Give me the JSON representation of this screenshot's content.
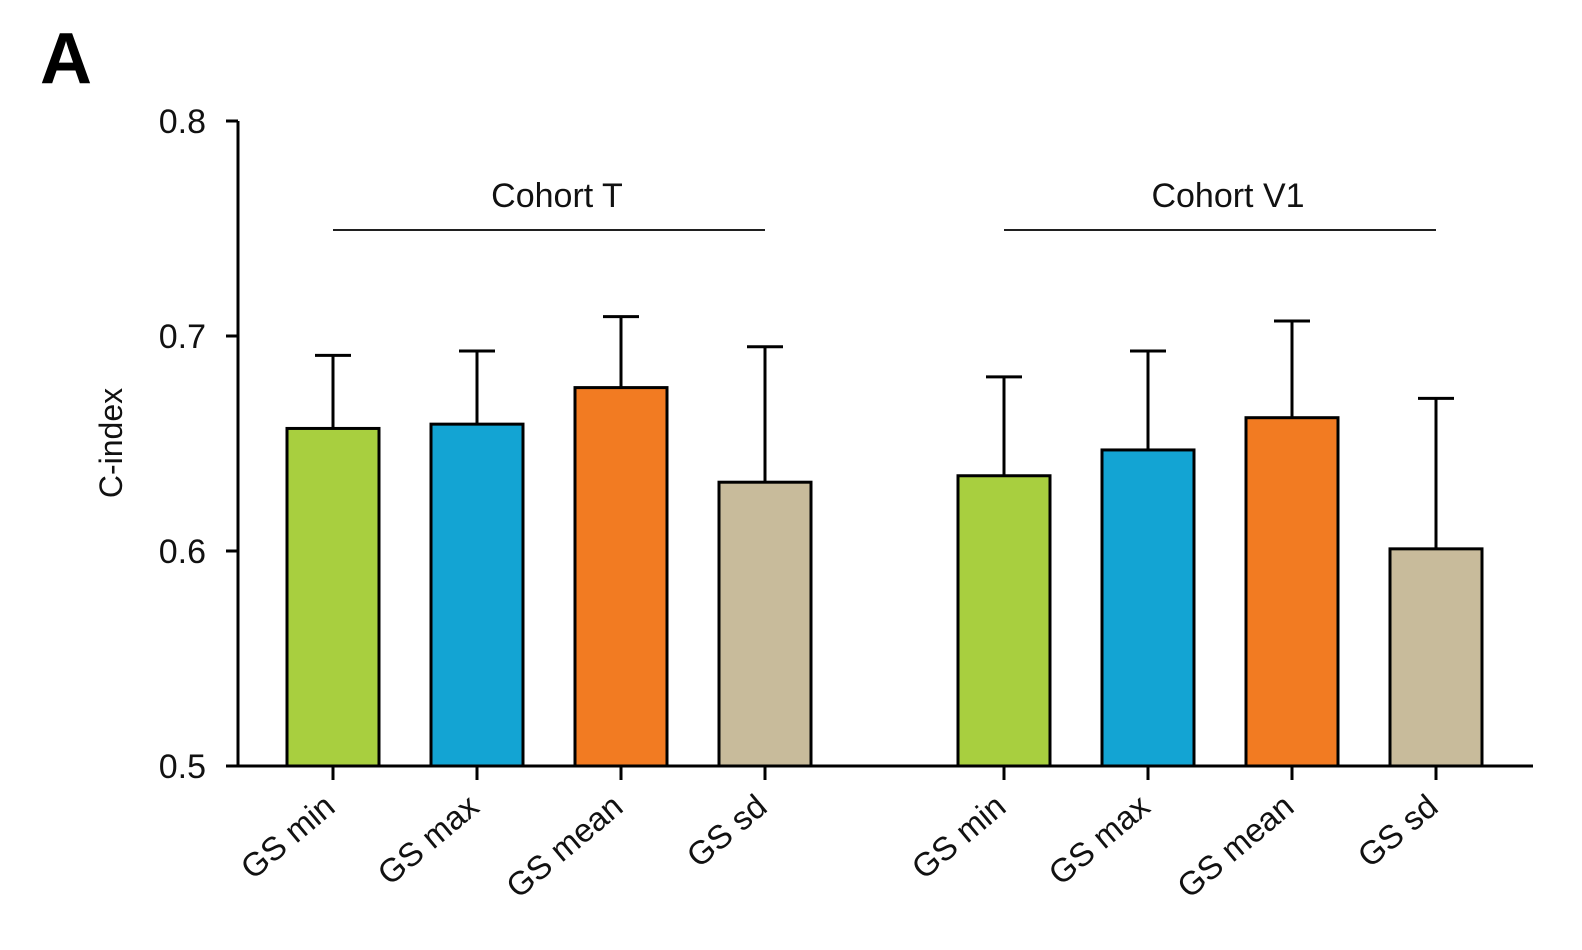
{
  "panel_label": "A",
  "chart_data": {
    "type": "bar",
    "title": "",
    "xlabel": "",
    "ylabel": "C-index",
    "ylim": [
      0.5,
      0.8
    ],
    "yticks": [
      0.5,
      0.6,
      0.7,
      0.8
    ],
    "ytick_labels": [
      "0.5",
      "0.6",
      "0.7",
      "0.8"
    ],
    "grid": false,
    "groups": [
      {
        "name": "Cohort T",
        "categories": [
          "GS min",
          "GS max",
          "GS mean",
          "GS sd"
        ],
        "values": [
          0.657,
          0.659,
          0.676,
          0.632
        ],
        "error_upper": [
          0.691,
          0.693,
          0.709,
          0.695
        ]
      },
      {
        "name": "Cohort V1",
        "categories": [
          "GS min",
          "GS max",
          "GS mean",
          "GS sd"
        ],
        "values": [
          0.635,
          0.647,
          0.662,
          0.601
        ],
        "error_upper": [
          0.681,
          0.693,
          0.707,
          0.671
        ]
      }
    ],
    "category_colors": {
      "GS min": "#a8cf3f",
      "GS max": "#13a4d3",
      "GS mean": "#f27b22",
      "GS sd": "#c8bb9b"
    }
  }
}
